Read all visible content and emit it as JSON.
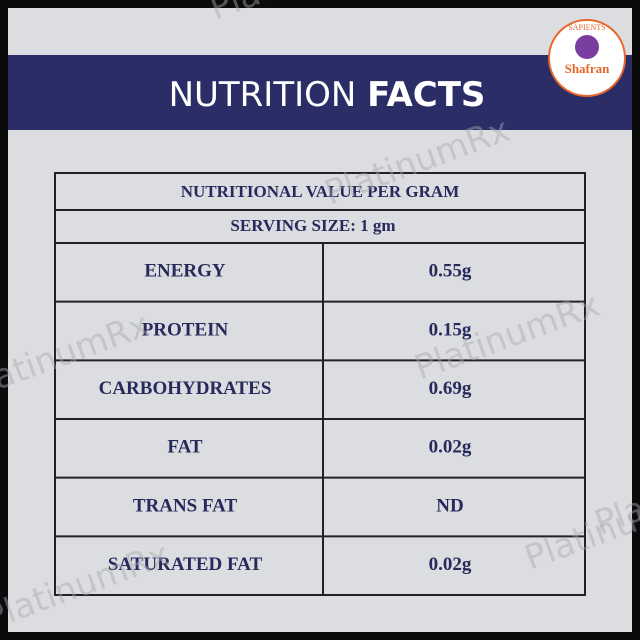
{
  "header": {
    "title_light": "NUTRITION",
    "title_bold": "FACTS"
  },
  "logo": {
    "top": "SAPIENTS",
    "brand": "Shafran"
  },
  "watermark": "PlatinumRx",
  "table": {
    "heading": "NUTRITIONAL VALUE PER GRAM",
    "serving": "SERVING SIZE: 1 gm",
    "rows": [
      [
        "ENERGY",
        "0.55g"
      ],
      [
        "PROTEIN",
        "0.15g"
      ],
      [
        "CARBOHYDRATES",
        "0.69g"
      ],
      [
        "FAT",
        "0.02g"
      ],
      [
        "TRANS FAT",
        "ND"
      ],
      [
        "SATURATED FAT",
        "0.02g"
      ]
    ]
  }
}
